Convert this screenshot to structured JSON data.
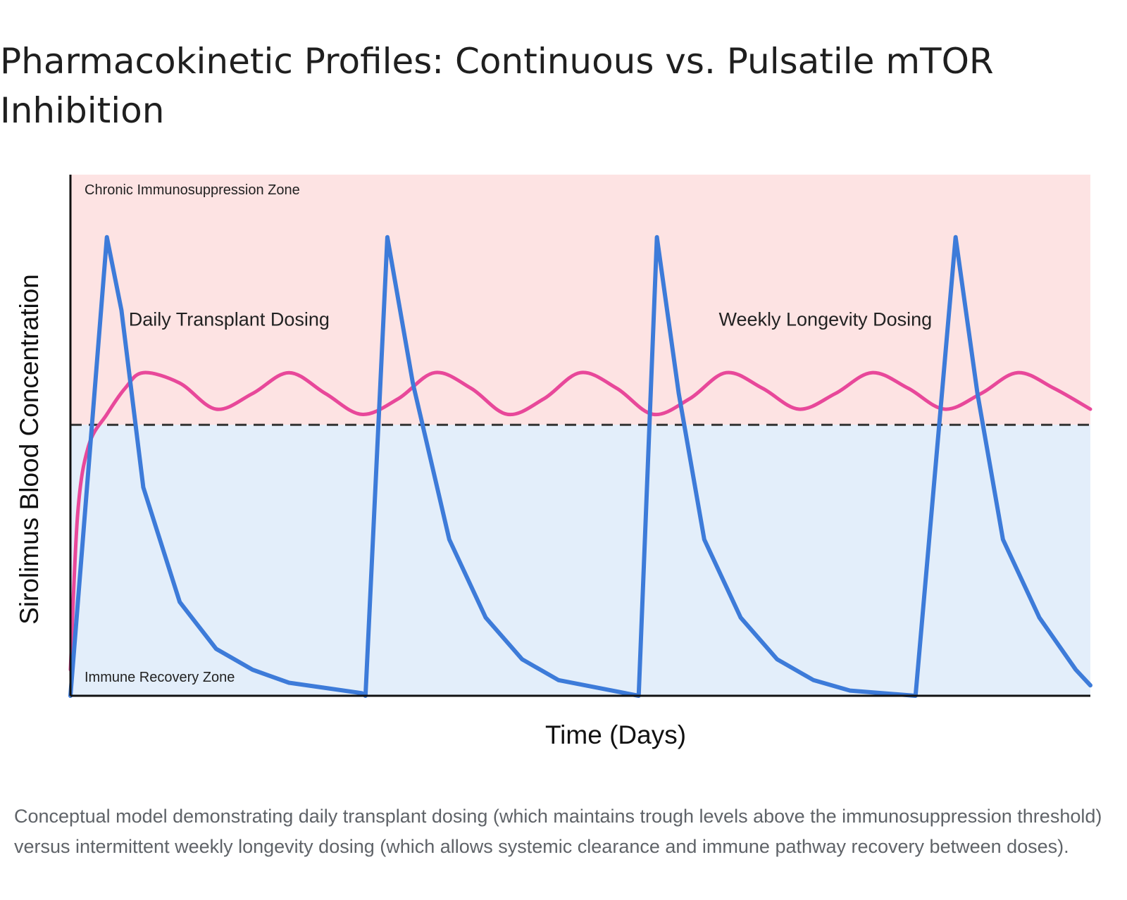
{
  "title": "Pharmacokinetic Profiles: Continuous vs. Pulsatile mTOR Inhibition",
  "caption": "Conceptual model demonstrating daily transplant dosing (which maintains trough levels above the immunosuppression threshold) versus intermittent weekly longevity dosing (which allows systemic clearance and immune pathway recovery between doses).",
  "chart_data": {
    "type": "line",
    "xlabel": "Time (Days)",
    "ylabel": "Sirolimus Blood Concentration",
    "xlim": [
      0,
      28
    ],
    "ylim": [
      0,
      100
    ],
    "ticks_shown": false,
    "grid": false,
    "threshold": {
      "y": 52,
      "style": "dashed",
      "color": "#333333"
    },
    "zones": [
      {
        "label": "Chronic Immunosuppression Zone",
        "from": 52,
        "to": 100,
        "color": "#fde3e3"
      },
      {
        "label": "Immune Recovery Zone",
        "from": 0,
        "to": 52,
        "color": "#e3eefa"
      }
    ],
    "series": [
      {
        "name": "Daily Transplant Dosing",
        "color": "#e8489a",
        "label_at": [
          1.6,
          71
        ],
        "x": [
          0,
          0.2,
          0.5,
          1,
          1.5,
          2,
          3,
          4,
          5,
          6,
          7,
          8,
          9,
          10,
          11,
          12,
          13,
          14,
          15,
          16,
          17,
          18,
          19,
          20,
          21,
          22,
          23,
          24,
          25,
          26,
          27,
          28
        ],
        "values": [
          5,
          35,
          48,
          54,
          59,
          62,
          60,
          55,
          58,
          62,
          58,
          54,
          57,
          62,
          59,
          54,
          57,
          62,
          59,
          54,
          57,
          62,
          59,
          55,
          58,
          62,
          59,
          55,
          58,
          62,
          59,
          55
        ]
      },
      {
        "name": "Weekly Longevity Dosing",
        "color": "#3d7bd9",
        "label_at": [
          17.8,
          71
        ],
        "x": [
          0,
          1,
          1.4,
          2,
          3,
          4,
          5,
          6,
          7,
          8,
          8.1,
          8.7,
          9.4,
          10.4,
          11.4,
          12.4,
          13.4,
          15.6,
          16.1,
          16.7,
          17.4,
          18.4,
          19.4,
          20.4,
          21.4,
          23.2,
          24.3,
          24.9,
          25.6,
          26.6,
          27.6,
          28
        ],
        "values": [
          0,
          88,
          74,
          40,
          18,
          9,
          5,
          2.5,
          1.5,
          0.5,
          0,
          88,
          60,
          30,
          15,
          7,
          3,
          0,
          88,
          58,
          30,
          15,
          7,
          3,
          1,
          0,
          88,
          58,
          30,
          15,
          5,
          2
        ]
      }
    ]
  }
}
